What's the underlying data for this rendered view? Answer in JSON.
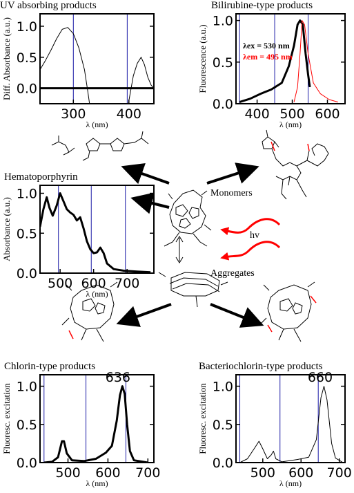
{
  "labels": {
    "monomers": "Monomers",
    "aggregates": "Aggregates",
    "hv": "hv"
  },
  "chart_data": [
    {
      "id": "uv",
      "type": "line",
      "title": "UV absorbing products",
      "xlabel": "λ (nm)",
      "ylabel": "Diff. Absorbance (a.u.)",
      "xlim": [
        240,
        445
      ],
      "ylim": [
        -0.25,
        1.2
      ],
      "xticks": [
        300,
        400
      ],
      "yticks": [
        0.0,
        0.5,
        1.0
      ],
      "vlines": [
        300,
        397
      ],
      "hlines": [
        0
      ],
      "series": [
        {
          "color": "#000000",
          "width": 1,
          "points": [
            [
              240,
              0.3
            ],
            [
              250,
              0.45
            ],
            [
              260,
              0.62
            ],
            [
              270,
              0.8
            ],
            [
              280,
              0.95
            ],
            [
              290,
              0.98
            ],
            [
              300,
              0.88
            ],
            [
              310,
              0.65
            ],
            [
              320,
              0.3
            ],
            [
              326,
              -0.05
            ],
            [
              330,
              -0.3
            ]
          ]
        },
        {
          "color": "#000000",
          "width": 1,
          "points": [
            [
              398,
              -0.3
            ],
            [
              402,
              -0.1
            ],
            [
              408,
              0.2
            ],
            [
              415,
              0.4
            ],
            [
              422,
              0.5
            ],
            [
              428,
              0.38
            ],
            [
              434,
              0.18
            ],
            [
              440,
              0.05
            ],
            [
              445,
              0.0
            ]
          ]
        }
      ]
    },
    {
      "id": "bili",
      "type": "line",
      "title": "Bilirubine-type products",
      "xlabel": "λ (nm)",
      "ylabel": "Fluorescence (a.u.)",
      "xlim": [
        340,
        650
      ],
      "ylim": [
        0,
        1.08
      ],
      "xticks": [
        400,
        500,
        600
      ],
      "yticks": [
        0.0,
        0.5,
        1.0
      ],
      "vlines": [
        350,
        450,
        545
      ],
      "legend": [
        {
          "text": "λex = 530 nm",
          "color": "#000000"
        },
        {
          "text": "λem = 495 nm",
          "color": "#ff0000"
        }
      ],
      "series": [
        {
          "name": "λex = 530 nm",
          "color": "#000000",
          "width": 3,
          "points": [
            [
              350,
              0.02
            ],
            [
              380,
              0.06
            ],
            [
              410,
              0.12
            ],
            [
              440,
              0.17
            ],
            [
              470,
              0.25
            ],
            [
              490,
              0.45
            ],
            [
              505,
              0.7
            ],
            [
              515,
              0.95
            ],
            [
              522,
              1.0
            ],
            [
              530,
              0.95
            ],
            [
              538,
              0.6
            ],
            [
              545,
              0.35
            ],
            [
              550,
              0.2
            ]
          ]
        },
        {
          "name": "λem = 495 nm",
          "color": "#ff0000",
          "width": 1,
          "points": [
            [
              505,
              0.02
            ],
            [
              515,
              0.2
            ],
            [
              522,
              0.6
            ],
            [
              528,
              1.0
            ],
            [
              535,
              0.95
            ],
            [
              545,
              0.6
            ],
            [
              560,
              0.25
            ],
            [
              580,
              0.12
            ],
            [
              605,
              0.05
            ],
            [
              630,
              0.02
            ]
          ]
        }
      ]
    },
    {
      "id": "hemato",
      "type": "line",
      "title": "Hematoporphyrin",
      "xlabel": "λ (nm)",
      "ylabel": "Absorbance (a.u.)",
      "xlim": [
        440,
        780
      ],
      "ylim": [
        0,
        1.1
      ],
      "xticks": [
        500,
        600,
        700
      ],
      "yticks": [
        0.0,
        0.5,
        1.0
      ],
      "vlines": [
        495,
        593,
        695
      ],
      "series": [
        {
          "color": "#000000",
          "width": 3,
          "points": [
            [
              440,
              0.58
            ],
            [
              450,
              0.8
            ],
            [
              460,
              0.95
            ],
            [
              468,
              0.82
            ],
            [
              478,
              0.72
            ],
            [
              490,
              0.85
            ],
            [
              500,
              1.0
            ],
            [
              510,
              0.9
            ],
            [
              520,
              0.8
            ],
            [
              530,
              0.76
            ],
            [
              540,
              0.73
            ],
            [
              550,
              0.66
            ],
            [
              560,
              0.7
            ],
            [
              570,
              0.56
            ],
            [
              580,
              0.4
            ],
            [
              590,
              0.3
            ],
            [
              600,
              0.25
            ],
            [
              610,
              0.26
            ],
            [
              620,
              0.32
            ],
            [
              630,
              0.25
            ],
            [
              640,
              0.12
            ],
            [
              660,
              0.05
            ],
            [
              690,
              0.03
            ],
            [
              730,
              0.02
            ],
            [
              770,
              0.01
            ]
          ]
        }
      ]
    },
    {
      "id": "chlorin",
      "type": "line",
      "title": "Chlorin-type products",
      "xlabel": "λ (nm)",
      "ylabel": "Fluoresc. excitation",
      "xlim": [
        430,
        715
      ],
      "ylim": [
        0,
        1.15
      ],
      "xticks": [
        500,
        600,
        700
      ],
      "yticks": [
        0.0,
        0.5,
        1.0
      ],
      "vlines": [
        440,
        545,
        645
      ],
      "annotations": [
        {
          "text": "636",
          "x": 625,
          "y": 1.06
        }
      ],
      "series": [
        {
          "color": "#000000",
          "width": 3,
          "points": [
            [
              440,
              0.0
            ],
            [
              460,
              0.01
            ],
            [
              475,
              0.07
            ],
            [
              485,
              0.28
            ],
            [
              490,
              0.28
            ],
            [
              497,
              0.12
            ],
            [
              510,
              0.03
            ],
            [
              540,
              0.02
            ],
            [
              570,
              0.05
            ],
            [
              595,
              0.13
            ],
            [
              610,
              0.22
            ],
            [
              622,
              0.55
            ],
            [
              630,
              0.88
            ],
            [
              636,
              1.0
            ],
            [
              642,
              0.9
            ],
            [
              648,
              0.5
            ],
            [
              655,
              0.15
            ],
            [
              665,
              0.03
            ],
            [
              700,
              0.0
            ]
          ]
        }
      ]
    },
    {
      "id": "bacterio",
      "type": "line",
      "title": "Bacteriochlorin-type products",
      "xlabel": "λ (nm)",
      "ylabel": "Fluoresc. excitation",
      "xlim": [
        430,
        715
      ],
      "ylim": [
        0,
        1.15
      ],
      "xticks": [
        500,
        600,
        700
      ],
      "yticks": [
        0.0,
        0.5,
        1.0
      ],
      "vlines": [
        440,
        545,
        645
      ],
      "annotations": [
        {
          "text": "660",
          "x": 650,
          "y": 1.06
        }
      ],
      "series": [
        {
          "color": "#000000",
          "width": 1,
          "points": [
            [
              440,
              0.0
            ],
            [
              460,
              0.05
            ],
            [
              480,
              0.2
            ],
            [
              490,
              0.28
            ],
            [
              500,
              0.18
            ],
            [
              512,
              0.05
            ],
            [
              522,
              0.1
            ],
            [
              528,
              0.15
            ],
            [
              534,
              0.05
            ],
            [
              550,
              0.01
            ],
            [
              590,
              0.04
            ],
            [
              620,
              0.07
            ],
            [
              640,
              0.3
            ],
            [
              652,
              0.85
            ],
            [
              660,
              1.0
            ],
            [
              668,
              0.82
            ],
            [
              680,
              0.25
            ],
            [
              690,
              0.06
            ],
            [
              710,
              0.0
            ]
          ]
        }
      ]
    }
  ]
}
